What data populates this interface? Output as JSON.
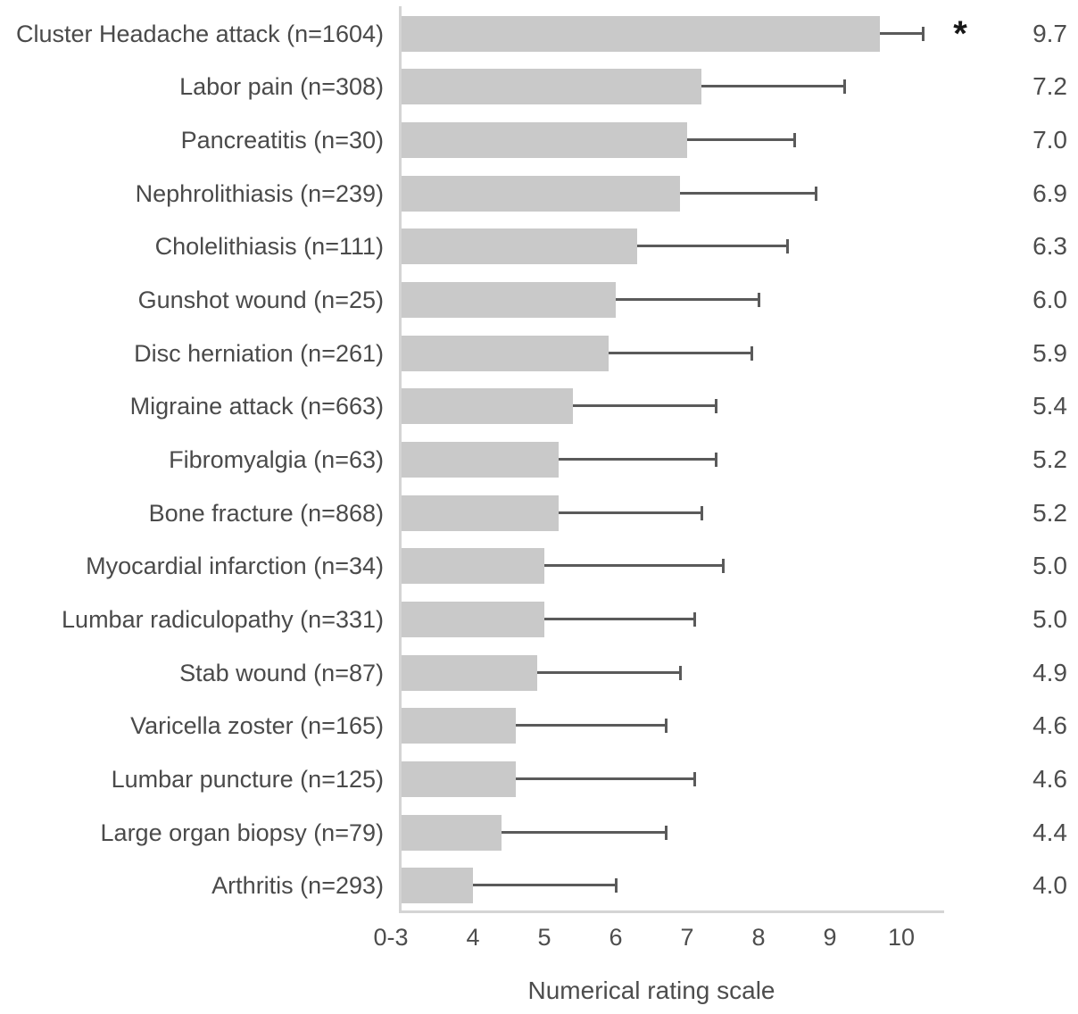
{
  "chart_data": {
    "type": "bar",
    "orientation": "horizontal",
    "title": "",
    "xlabel": "Numerical rating scale",
    "categories": [
      "Cluster Headache attack (n=1604)",
      "Labor pain (n=308)",
      "Pancreatitis (n=30)",
      "Nephrolithiasis (n=239)",
      "Cholelithiasis (n=111)",
      "Gunshot wound (n=25)",
      "Disc herniation (n=261)",
      "Migraine attack (n=663)",
      "Fibromyalgia (n=63)",
      "Bone fracture (n=868)",
      "Myocardial infarction (n=34)",
      "Lumbar radiculopathy (n=331)",
      "Stab wound (n=87)",
      "Varicella zoster (n=165)",
      "Lumbar puncture (n=125)",
      "Large organ biopsy (n=79)",
      "Arthritis (n=293)"
    ],
    "values": [
      9.7,
      7.2,
      7.0,
      6.9,
      6.3,
      6.0,
      5.9,
      5.4,
      5.2,
      5.2,
      5.0,
      5.0,
      4.9,
      4.6,
      4.6,
      4.4,
      4.0
    ],
    "value_labels": [
      "9.7",
      "7.2",
      "7.0",
      "6.9",
      "6.3",
      "6.0",
      "5.9",
      "5.4",
      "5.2",
      "5.2",
      "5.0",
      "5.0",
      "4.9",
      "4.6",
      "4.6",
      "4.4",
      "4.0"
    ],
    "upper_errors": [
      0.6,
      2.0,
      1.5,
      1.9,
      2.1,
      2.0,
      2.0,
      2.0,
      2.2,
      2.0,
      2.5,
      2.1,
      2.0,
      2.1,
      2.5,
      2.3,
      2.0
    ],
    "significance_markers": [
      {
        "row_index": 0,
        "symbol": "*"
      }
    ],
    "xticks": [
      {
        "label": "0-3",
        "value": 3
      },
      {
        "label": "4",
        "value": 4
      },
      {
        "label": "5",
        "value": 5
      },
      {
        "label": "6",
        "value": 6
      },
      {
        "label": "7",
        "value": 7
      },
      {
        "label": "8",
        "value": 8
      },
      {
        "label": "9",
        "value": 9
      },
      {
        "label": "10",
        "value": 10
      }
    ],
    "xlim": [
      3,
      10.6
    ],
    "axis_truncated_label": "0-3",
    "grid": false,
    "legend": "none",
    "error_bars": "upper only, mean + SD",
    "colors": {
      "bar_fill": "#c9c9c9",
      "error_bar": "#5a5a5a",
      "axis_line": "#d4d4d4",
      "category_text": "#4a4a4a",
      "value_text": "#4d4d4d",
      "asterisk": "#171717",
      "background": "#ffffff"
    }
  }
}
